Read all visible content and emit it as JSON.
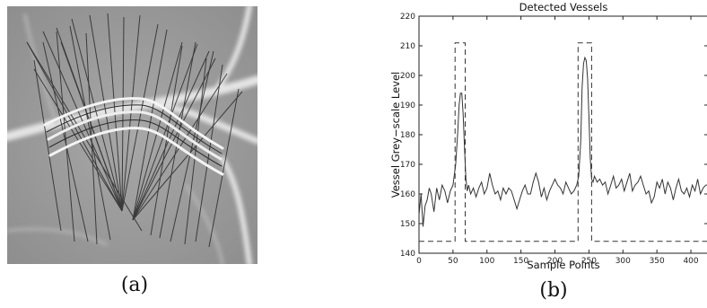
{
  "figure": {
    "panel_a": {
      "caption": "(a)"
    },
    "panel_b": {
      "caption": "(b)"
    }
  },
  "chart_data": {
    "type": "line",
    "title": "Detected Vessels",
    "xlabel": "Sample Points",
    "ylabel": "Vessel Grey−scale Level",
    "xlim": [
      0,
      425
    ],
    "ylim": [
      140,
      220
    ],
    "xticks": [
      "0",
      "50",
      "100",
      "150",
      "200",
      "250",
      "300",
      "350",
      "400"
    ],
    "yticks": [
      "140",
      "150",
      "160",
      "170",
      "180",
      "190",
      "200",
      "210",
      "220"
    ],
    "grid": false,
    "series": [
      {
        "style": "solid",
        "x": [
          0,
          3,
          6,
          9,
          12,
          15,
          18,
          22,
          26,
          30,
          34,
          38,
          42,
          46,
          50,
          54,
          57,
          59,
          61,
          63,
          65,
          67,
          69,
          71,
          73,
          76,
          80,
          84,
          88,
          92,
          96,
          100,
          104,
          108,
          112,
          116,
          120,
          124,
          128,
          132,
          136,
          140,
          144,
          148,
          152,
          156,
          160,
          164,
          168,
          172,
          176,
          180,
          184,
          188,
          192,
          196,
          200,
          204,
          208,
          212,
          216,
          220,
          224,
          228,
          232,
          235,
          238,
          240,
          242,
          244,
          246,
          248,
          250,
          252,
          254,
          256,
          258,
          262,
          266,
          270,
          274,
          278,
          282,
          286,
          290,
          294,
          298,
          302,
          306,
          310,
          314,
          318,
          322,
          326,
          330,
          334,
          338,
          342,
          346,
          350,
          354,
          358,
          362,
          366,
          370,
          374,
          378,
          382,
          386,
          390,
          394,
          398,
          402,
          406,
          410,
          414,
          418,
          422,
          425
        ],
        "y": [
          153,
          160,
          149,
          156,
          158,
          162,
          160,
          154,
          162,
          158,
          163,
          161,
          157,
          161,
          163,
          170,
          181,
          190,
          194,
          194,
          187,
          175,
          165,
          161,
          163,
          160,
          162,
          159,
          162,
          164,
          160,
          162,
          167,
          163,
          160,
          161,
          158,
          162,
          160,
          162,
          161,
          158,
          155,
          158,
          161,
          163,
          160,
          160,
          164,
          167,
          164,
          159,
          162,
          158,
          161,
          163,
          165,
          163,
          162,
          160,
          164,
          162,
          160,
          161,
          163,
          166,
          178,
          196,
          204,
          206,
          205,
          199,
          186,
          172,
          165,
          164,
          166,
          164,
          165,
          163,
          164,
          160,
          163,
          166,
          162,
          163,
          165,
          161,
          164,
          167,
          161,
          163,
          164,
          166,
          163,
          160,
          161,
          157,
          159,
          164,
          162,
          165,
          160,
          164,
          162,
          158,
          162,
          165,
          161,
          160,
          162,
          159,
          163,
          161,
          165,
          160,
          162,
          163,
          163
        ]
      },
      {
        "style": "dashed",
        "x": [
          0,
          53,
          53,
          68,
          68,
          234,
          234,
          254,
          254,
          425
        ],
        "y": [
          144,
          144,
          211,
          211,
          144,
          144,
          211,
          211,
          144,
          144
        ]
      }
    ]
  }
}
